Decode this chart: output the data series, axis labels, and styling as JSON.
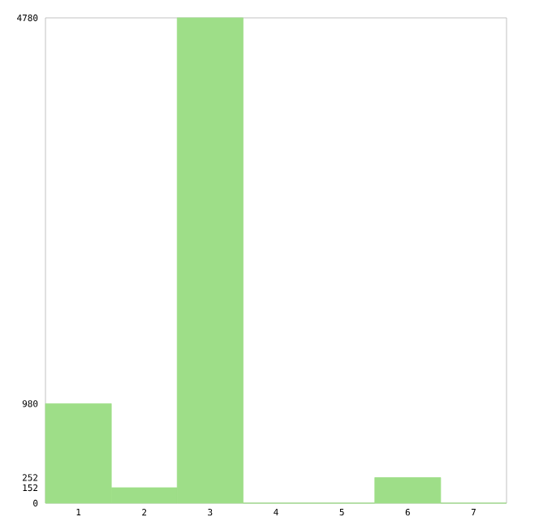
{
  "chart_data": {
    "type": "bar",
    "categories": [
      "1",
      "2",
      "3",
      "4",
      "5",
      "6",
      "7"
    ],
    "values": [
      980,
      152,
      4780,
      0,
      0,
      252,
      0
    ],
    "color": "#9ede88",
    "ylim": [
      0,
      4780
    ],
    "yticks": [
      0,
      152,
      252,
      980,
      4780
    ],
    "grid": false
  }
}
